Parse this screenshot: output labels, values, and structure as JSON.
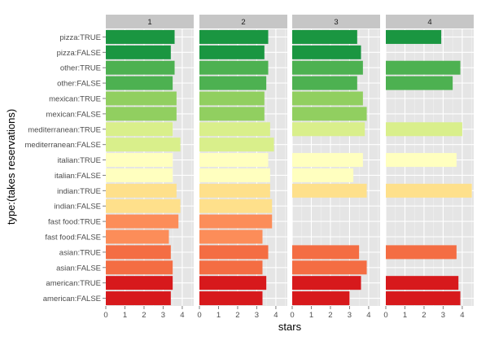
{
  "chart_data": {
    "type": "bar",
    "orientation": "horizontal",
    "facet_labels": [
      "1",
      "2",
      "3",
      "4"
    ],
    "ylabel": "type:(takes reservations)",
    "xlabel": "stars",
    "xlim": [
      0,
      4.6
    ],
    "x_ticks": [
      "0",
      "1",
      "2",
      "3",
      "4"
    ],
    "grid": true,
    "categories": [
      "pizza:TRUE",
      "pizza:FALSE",
      "other:TRUE",
      "other:FALSE",
      "mexican:TRUE",
      "mexican:FALSE",
      "mediterranean:TRUE",
      "mediterranean:FALSE",
      "italian:TRUE",
      "italian:FALSE",
      "indian:TRUE",
      "indian:FALSE",
      "fast food:TRUE",
      "fast food:FALSE",
      "asian:TRUE",
      "asian:FALSE",
      "american:TRUE",
      "american:FALSE"
    ],
    "colors": [
      "#1a9641",
      "#1a9641",
      "#4db151",
      "#4db151",
      "#91cf60",
      "#91cf60",
      "#d9ef8b",
      "#d9ef8b",
      "#ffffbf",
      "#ffffbf",
      "#fee08b",
      "#fee08b",
      "#fc8d59",
      "#fc8d59",
      "#f46d43",
      "#f46d43",
      "#d7191c",
      "#d7191c"
    ],
    "series": [
      {
        "values": [
          3.6,
          3.4,
          3.6,
          3.5,
          3.7,
          3.7,
          3.5,
          3.9,
          3.5,
          3.5,
          3.7,
          3.9,
          3.8,
          3.3,
          3.4,
          3.5,
          3.5,
          3.4
        ]
      },
      {
        "values": [
          3.6,
          3.4,
          3.6,
          3.5,
          3.4,
          3.4,
          3.7,
          3.9,
          3.6,
          3.7,
          3.7,
          3.8,
          3.8,
          3.3,
          3.6,
          3.3,
          3.5,
          3.3
        ]
      },
      {
        "values": [
          3.4,
          3.6,
          3.7,
          3.4,
          3.7,
          3.9,
          3.8,
          null,
          3.7,
          3.2,
          3.9,
          null,
          null,
          null,
          3.5,
          3.9,
          3.6,
          3.0
        ]
      },
      {
        "values": [
          2.9,
          null,
          3.9,
          3.5,
          null,
          null,
          4.0,
          null,
          3.7,
          null,
          4.5,
          null,
          null,
          null,
          3.7,
          null,
          3.8,
          3.9
        ]
      }
    ]
  }
}
